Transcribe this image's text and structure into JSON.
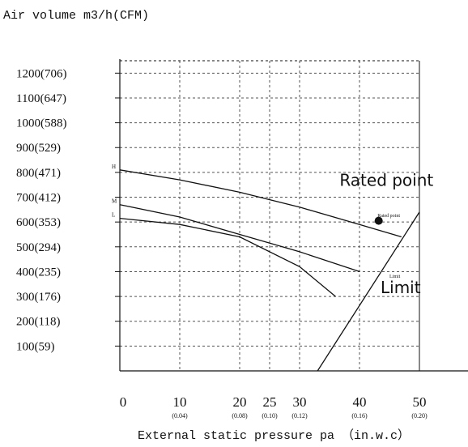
{
  "chart_data": {
    "type": "line",
    "title": "",
    "ylabel": "Air volume m3/h(CFM)",
    "xlabel": "External static pressure pa （in.w.c）",
    "x_ticks": [
      {
        "value": 0,
        "label": "0",
        "sub": ""
      },
      {
        "value": 10,
        "label": "10",
        "sub": "(0.04)"
      },
      {
        "value": 20,
        "label": "20",
        "sub": "(0.08)"
      },
      {
        "value": 25,
        "label": "25",
        "sub": "(0.10)"
      },
      {
        "value": 30,
        "label": "30",
        "sub": "(0.12)"
      },
      {
        "value": 40,
        "label": "40",
        "sub": "(0.16)"
      },
      {
        "value": 50,
        "label": "50",
        "sub": "(0.20)"
      }
    ],
    "y_ticks": [
      {
        "value": 100,
        "label": "100(59)"
      },
      {
        "value": 200,
        "label": "200(118)"
      },
      {
        "value": 300,
        "label": "300(176)"
      },
      {
        "value": 400,
        "label": "400(235)"
      },
      {
        "value": 500,
        "label": "500(294)"
      },
      {
        "value": 600,
        "label": "600(353)"
      },
      {
        "value": 700,
        "label": "700(412)"
      },
      {
        "value": 800,
        "label": "800(471)"
      },
      {
        "value": 900,
        "label": "900(529)"
      },
      {
        "value": 1000,
        "label": "1000(588)"
      },
      {
        "value": 1100,
        "label": "1100(647)"
      },
      {
        "value": 1200,
        "label": "1200(706)"
      }
    ],
    "xlim": [
      0,
      50
    ],
    "ylim": [
      0,
      1250
    ],
    "grid": true,
    "grid_style": "dashed",
    "series": [
      {
        "name": "H",
        "x": [
          0,
          10,
          20,
          30,
          40,
          47
        ],
        "y": [
          810,
          770,
          720,
          660,
          590,
          540
        ]
      },
      {
        "name": "M",
        "x": [
          0,
          10,
          20,
          30,
          40
        ],
        "y": [
          670,
          620,
          550,
          480,
          400
        ]
      },
      {
        "name": "L",
        "x": [
          0,
          10,
          20,
          30,
          36
        ],
        "y": [
          615,
          590,
          540,
          420,
          300
        ]
      },
      {
        "name": "Limit",
        "x": [
          33,
          50
        ],
        "y": [
          0,
          640
        ]
      }
    ],
    "annotations": [
      {
        "text": "Rated point",
        "x": 43,
        "y": 620
      },
      {
        "text": "Limit",
        "x": 45,
        "y": 375
      },
      {
        "text": "Rated point",
        "x": 44.5,
        "y": 745,
        "big": true
      }
    ],
    "marker": {
      "x": 43.2,
      "y": 605
    },
    "limit_label_big": "Limit"
  }
}
